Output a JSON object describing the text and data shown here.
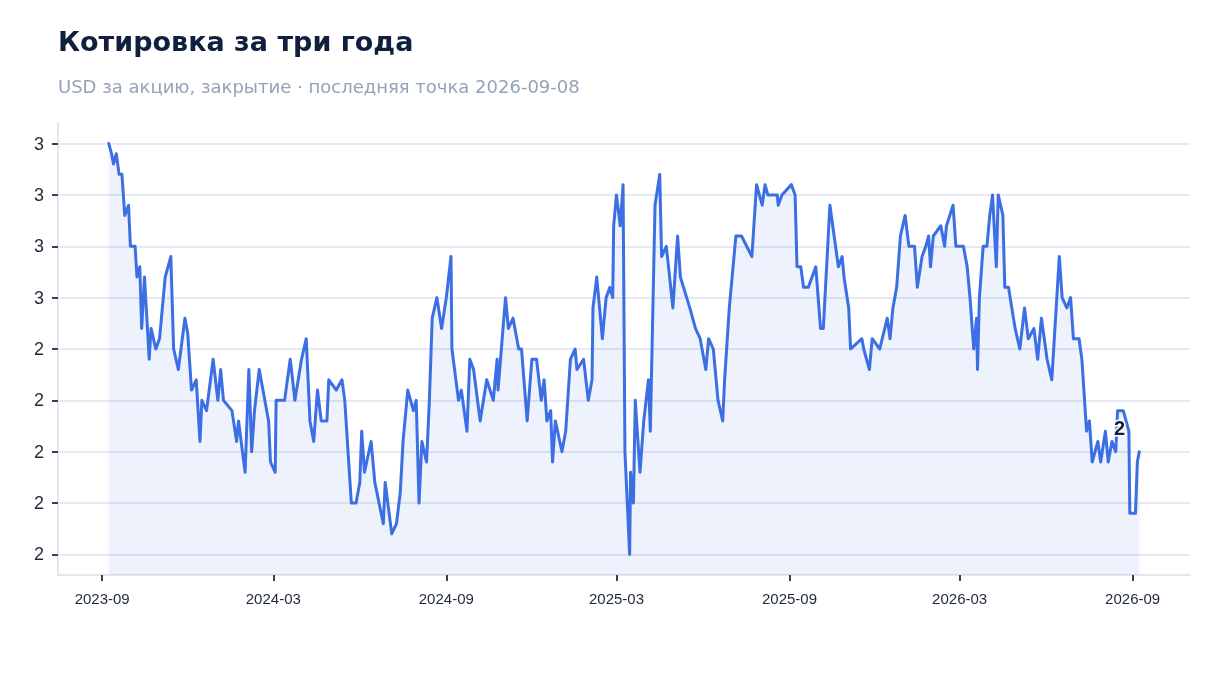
{
  "chart_data": {
    "type": "area",
    "title": "Котировка за три года",
    "subtitle": "USD за акцию, закрытие · последняя точка 2026-09-08",
    "annotations": [
      {
        "text": "2",
        "x": "2026-09-08",
        "y": 2.3
      }
    ],
    "xlim": [
      "2023-07-16",
      "2026-11-01"
    ],
    "xticks": [
      "2023-09",
      "2024-03",
      "2024-09",
      "2025-03",
      "2025-09",
      "2026-03",
      "2026-09"
    ],
    "ylim": [
      2.06,
      2.94
    ],
    "yticks": [
      {
        "value": 2.1,
        "label": "2"
      },
      {
        "value": 2.2,
        "label": "2"
      },
      {
        "value": 2.3,
        "label": "2"
      },
      {
        "value": 2.4,
        "label": "2"
      },
      {
        "value": 2.5,
        "label": "2"
      },
      {
        "value": 2.6,
        "label": "3"
      },
      {
        "value": 2.7,
        "label": "3"
      },
      {
        "value": 2.8,
        "label": "3"
      },
      {
        "value": 2.9,
        "label": "3"
      }
    ],
    "grid": "y",
    "marker": "none",
    "line_style": "solid",
    "x": [
      "2023-09-08",
      "2023-09-11",
      "2023-09-13",
      "2023-09-16",
      "2023-09-19",
      "2023-09-22",
      "2023-09-25",
      "2023-09-29",
      "2023-10-01",
      "2023-10-06",
      "2023-10-08",
      "2023-10-11",
      "2023-10-13",
      "2023-10-16",
      "2023-10-21",
      "2023-10-23",
      "2023-10-28",
      "2023-11-01",
      "2023-11-07",
      "2023-11-13",
      "2023-11-15",
      "2023-11-16",
      "2023-11-21",
      "2023-11-28",
      "2023-12-01",
      "2023-12-05",
      "2023-12-10",
      "2023-12-14",
      "2023-12-16",
      "2023-12-21",
      "2023-12-28",
      "2024-01-02",
      "2024-01-05",
      "2024-01-08",
      "2024-01-17",
      "2024-01-22",
      "2024-01-24",
      "2024-01-31",
      "2024-02-04",
      "2024-02-07",
      "2024-02-10",
      "2024-02-15",
      "2024-02-19",
      "2024-02-25",
      "2024-02-27",
      "2024-03-03",
      "2024-03-04",
      "2024-03-13",
      "2024-03-19",
      "2024-03-24",
      "2024-03-31",
      "2024-04-05",
      "2024-04-09",
      "2024-04-13",
      "2024-04-17",
      "2024-04-21",
      "2024-04-27",
      "2024-04-29",
      "2024-05-07",
      "2024-05-13",
      "2024-05-16",
      "2024-05-23",
      "2024-05-28",
      "2024-06-01",
      "2024-06-03",
      "2024-06-06",
      "2024-06-13",
      "2024-06-17",
      "2024-06-26",
      "2024-06-28",
      "2024-07-05",
      "2024-07-10",
      "2024-07-14",
      "2024-07-17",
      "2024-07-22",
      "2024-07-28",
      "2024-07-31",
      "2024-08-03",
      "2024-08-06",
      "2024-08-11",
      "2024-08-14",
      "2024-08-17",
      "2024-08-22",
      "2024-08-27",
      "2024-09-01",
      "2024-09-06",
      "2024-09-07",
      "2024-09-14",
      "2024-09-17",
      "2024-09-23",
      "2024-09-26",
      "2024-09-30",
      "2024-10-07",
      "2024-10-14",
      "2024-10-21",
      "2024-10-25",
      "2024-10-26",
      "2024-11-03",
      "2024-11-06",
      "2024-11-11",
      "2024-11-17",
      "2024-11-20",
      "2024-11-26",
      "2024-12-01",
      "2024-12-06",
      "2024-12-11",
      "2024-12-14",
      "2024-12-17",
      "2024-12-21",
      "2024-12-23",
      "2024-12-26",
      "2025-01-02",
      "2025-01-06",
      "2025-01-11",
      "2025-01-16",
      "2025-01-18",
      "2025-01-25",
      "2025-01-30",
      "2025-02-03",
      "2025-02-04",
      "2025-02-08",
      "2025-02-14",
      "2025-02-18",
      "2025-02-22",
      "2025-02-25",
      "2025-02-26",
      "2025-03-01",
      "2025-03-05",
      "2025-03-08",
      "2025-03-10",
      "2025-03-15",
      "2025-03-16",
      "2025-03-19",
      "2025-03-21",
      "2025-03-26",
      "2025-03-30",
      "2025-04-04",
      "2025-04-06",
      "2025-04-11",
      "2025-04-16",
      "2025-04-18",
      "2025-04-23",
      "2025-04-30",
      "2025-05-05",
      "2025-05-08",
      "2025-05-18",
      "2025-05-24",
      "2025-05-29",
      "2025-06-04",
      "2025-06-07",
      "2025-06-12",
      "2025-06-17",
      "2025-06-22",
      "2025-06-24",
      "2025-06-29",
      "2025-07-06",
      "2025-07-12",
      "2025-07-23",
      "2025-07-28",
      "2025-08-03",
      "2025-08-06",
      "2025-08-09",
      "2025-08-19",
      "2025-08-20",
      "2025-08-24",
      "2025-09-03",
      "2025-09-07",
      "2025-09-09",
      "2025-09-13",
      "2025-09-16",
      "2025-09-21",
      "2025-09-29",
      "2025-10-04",
      "2025-10-07",
      "2025-10-14",
      "2025-10-20",
      "2025-10-23",
      "2025-10-27",
      "2025-10-29",
      "2025-11-03",
      "2025-11-05",
      "2025-11-17",
      "2025-11-19",
      "2025-11-25",
      "2025-11-28",
      "2025-12-06",
      "2025-12-14",
      "2025-12-17",
      "2025-12-20",
      "2025-12-24",
      "2025-12-28",
      "2026-01-02",
      "2026-01-06",
      "2026-01-12",
      "2026-01-15",
      "2026-01-20",
      "2026-01-24",
      "2026-01-27",
      "2026-01-29",
      "2026-02-01",
      "2026-02-09",
      "2026-02-13",
      "2026-02-15",
      "2026-02-22",
      "2026-02-25",
      "2026-03-05",
      "2026-03-09",
      "2026-03-12",
      "2026-03-16",
      "2026-03-19",
      "2026-03-20",
      "2026-03-22",
      "2026-03-26",
      "2026-03-30",
      "2026-04-02",
      "2026-04-05",
      "2026-04-09",
      "2026-04-11",
      "2026-04-16",
      "2026-04-18",
      "2026-04-22",
      "2026-04-29",
      "2026-05-04",
      "2026-05-09",
      "2026-05-13",
      "2026-05-19",
      "2026-05-23",
      "2026-05-27",
      "2026-06-02",
      "2026-06-07",
      "2026-06-13",
      "2026-06-15",
      "2026-06-18",
      "2026-06-23",
      "2026-06-27",
      "2026-06-30",
      "2026-07-06",
      "2026-07-09",
      "2026-07-14",
      "2026-07-17",
      "2026-07-20",
      "2026-07-26",
      "2026-07-29",
      "2026-08-03",
      "2026-08-06",
      "2026-08-10",
      "2026-08-14",
      "2026-08-16",
      "2026-08-22",
      "2026-08-28",
      "2026-08-29",
      "2026-09-04",
      "2026-09-06",
      "2026-09-08"
    ],
    "series": [
      {
        "color": "#3b6fe3",
        "values": [
          2.9,
          2.88,
          2.86,
          2.88,
          2.84,
          2.84,
          2.76,
          2.78,
          2.7,
          2.7,
          2.64,
          2.66,
          2.54,
          2.64,
          2.48,
          2.54,
          2.5,
          2.52,
          2.64,
          2.68,
          2.56,
          2.5,
          2.46,
          2.56,
          2.53,
          2.42,
          2.44,
          2.32,
          2.4,
          2.38,
          2.48,
          2.4,
          2.46,
          2.4,
          2.38,
          2.32,
          2.36,
          2.26,
          2.46,
          2.3,
          2.38,
          2.46,
          2.42,
          2.36,
          2.28,
          2.26,
          2.4,
          2.4,
          2.48,
          2.4,
          2.48,
          2.52,
          2.36,
          2.32,
          2.42,
          2.36,
          2.36,
          2.44,
          2.42,
          2.44,
          2.4,
          2.2,
          2.2,
          2.24,
          2.34,
          2.26,
          2.32,
          2.24,
          2.16,
          2.24,
          2.14,
          2.16,
          2.22,
          2.32,
          2.42,
          2.38,
          2.4,
          2.2,
          2.32,
          2.28,
          2.4,
          2.56,
          2.6,
          2.54,
          2.6,
          2.68,
          2.5,
          2.4,
          2.42,
          2.34,
          2.48,
          2.46,
          2.36,
          2.44,
          2.4,
          2.48,
          2.42,
          2.6,
          2.54,
          2.56,
          2.5,
          2.5,
          2.36,
          2.48,
          2.48,
          2.4,
          2.44,
          2.36,
          2.38,
          2.28,
          2.36,
          2.3,
          2.34,
          2.48,
          2.5,
          2.46,
          2.48,
          2.4,
          2.44,
          2.58,
          2.64,
          2.52,
          2.6,
          2.62,
          2.6,
          2.74,
          2.8,
          2.74,
          2.82,
          2.3,
          2.1,
          2.26,
          2.2,
          2.4,
          2.26,
          2.36,
          2.44,
          2.34,
          2.78,
          2.84,
          2.68,
          2.7,
          2.58,
          2.72,
          2.64,
          2.58,
          2.54,
          2.52,
          2.46,
          2.52,
          2.5,
          2.4,
          2.36,
          2.44,
          2.58,
          2.72,
          2.72,
          2.68,
          2.82,
          2.78,
          2.82,
          2.8,
          2.8,
          2.78,
          2.8,
          2.82,
          2.8,
          2.66,
          2.66,
          2.62,
          2.62,
          2.66,
          2.54,
          2.54,
          2.78,
          2.7,
          2.66,
          2.68,
          2.64,
          2.58,
          2.5,
          2.52,
          2.5,
          2.46,
          2.52,
          2.5,
          2.56,
          2.52,
          2.58,
          2.62,
          2.72,
          2.76,
          2.7,
          2.7,
          2.62,
          2.68,
          2.7,
          2.72,
          2.66,
          2.72,
          2.74,
          2.7,
          2.74,
          2.78,
          2.7,
          2.7,
          2.66,
          2.6,
          2.5,
          2.56,
          2.46,
          2.6,
          2.7,
          2.7,
          2.76,
          2.8,
          2.66,
          2.8,
          2.76,
          2.62,
          2.62,
          2.54,
          2.5,
          2.58,
          2.52,
          2.54,
          2.48,
          2.56,
          2.48,
          2.44,
          2.62,
          2.68,
          2.6,
          2.58,
          2.6,
          2.52,
          2.52,
          2.48,
          2.34,
          2.36,
          2.28,
          2.32,
          2.28,
          2.34,
          2.28,
          2.32,
          2.3,
          2.38,
          2.38,
          2.34,
          2.18,
          2.18,
          2.28,
          2.3
        ]
      }
    ]
  }
}
